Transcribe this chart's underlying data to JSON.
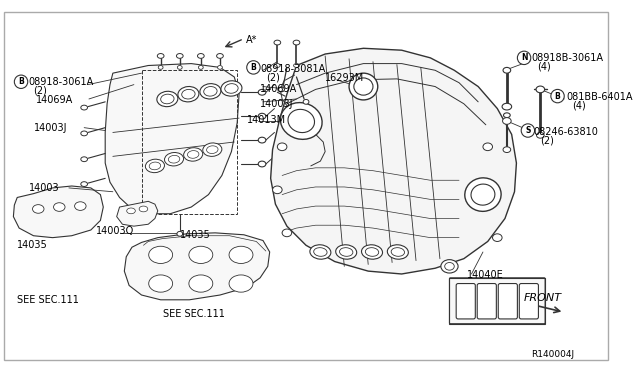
{
  "background_color": "#ffffff",
  "border_color": "#999999",
  "line_color": "#333333",
  "text_color": "#000000",
  "fig_w": 6.4,
  "fig_h": 3.72,
  "dpi": 100,
  "xlim": [
    0,
    640
  ],
  "ylim": [
    0,
    372
  ]
}
